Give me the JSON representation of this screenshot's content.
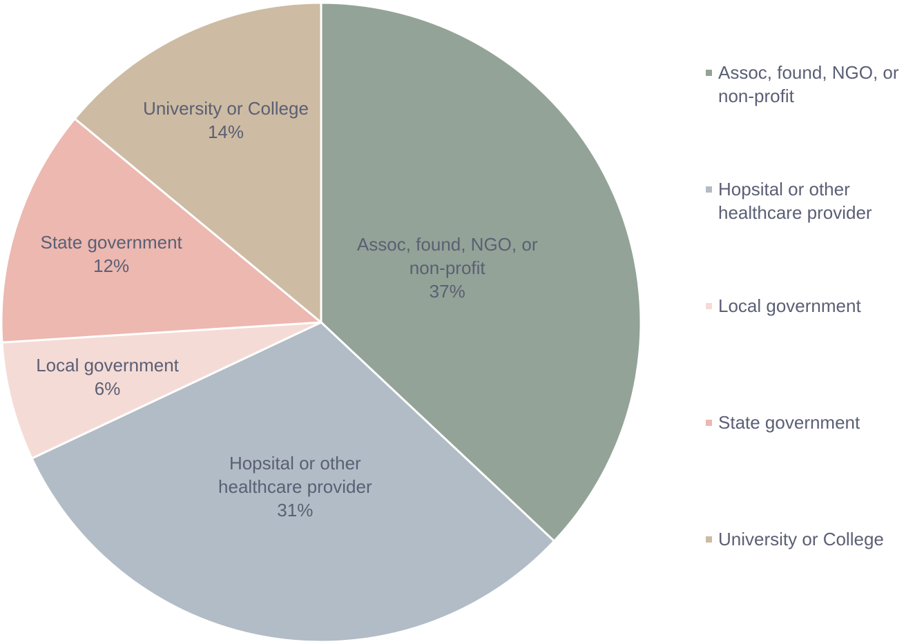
{
  "chart_data": {
    "type": "pie",
    "categories": [
      "Assoc, found, NGO, or non-profit",
      "Hopsital or other healthcare provider",
      "Local government",
      "State government",
      "University or College"
    ],
    "values": [
      37,
      31,
      6,
      12,
      14
    ],
    "value_labels": [
      "37%",
      "31%",
      "6%",
      "12%",
      "14%"
    ],
    "colors": [
      "#93a397",
      "#b2bcc6",
      "#f5dbd6",
      "#ecb8b0",
      "#cdbba3"
    ],
    "legend": "right"
  }
}
